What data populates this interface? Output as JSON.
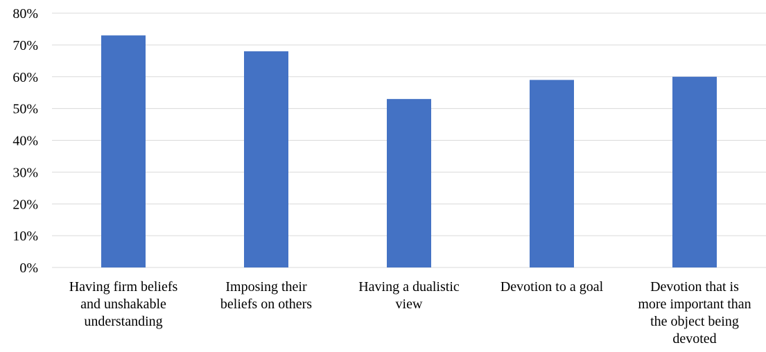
{
  "chart_data": {
    "type": "bar",
    "title": "",
    "xlabel": "",
    "ylabel": "",
    "categories": [
      "Having firm beliefs and unshakable understanding",
      "Imposing their beliefs on others",
      "Having a dualistic view",
      "Devotion to a goal",
      "Devotion that is more important than the object being devoted"
    ],
    "category_lines": [
      [
        "Having firm beliefs",
        "and unshakable",
        "understanding"
      ],
      [
        "Imposing their",
        "beliefs on others"
      ],
      [
        "Having a dualistic",
        "view"
      ],
      [
        "Devotion to a goal"
      ],
      [
        "Devotion that is",
        "more important than",
        "the object being",
        "devoted"
      ]
    ],
    "values": [
      73,
      68,
      53,
      59,
      60
    ],
    "value_unit": "%",
    "ylim": [
      0,
      80
    ],
    "y_ticks": [
      0,
      10,
      20,
      30,
      40,
      50,
      60,
      70,
      80
    ],
    "y_tick_labels": [
      "0%",
      "10%",
      "20%",
      "30%",
      "40%",
      "50%",
      "60%",
      "70%",
      "80%"
    ],
    "grid": true,
    "legend": "none",
    "bar_color": "#4472c4"
  }
}
